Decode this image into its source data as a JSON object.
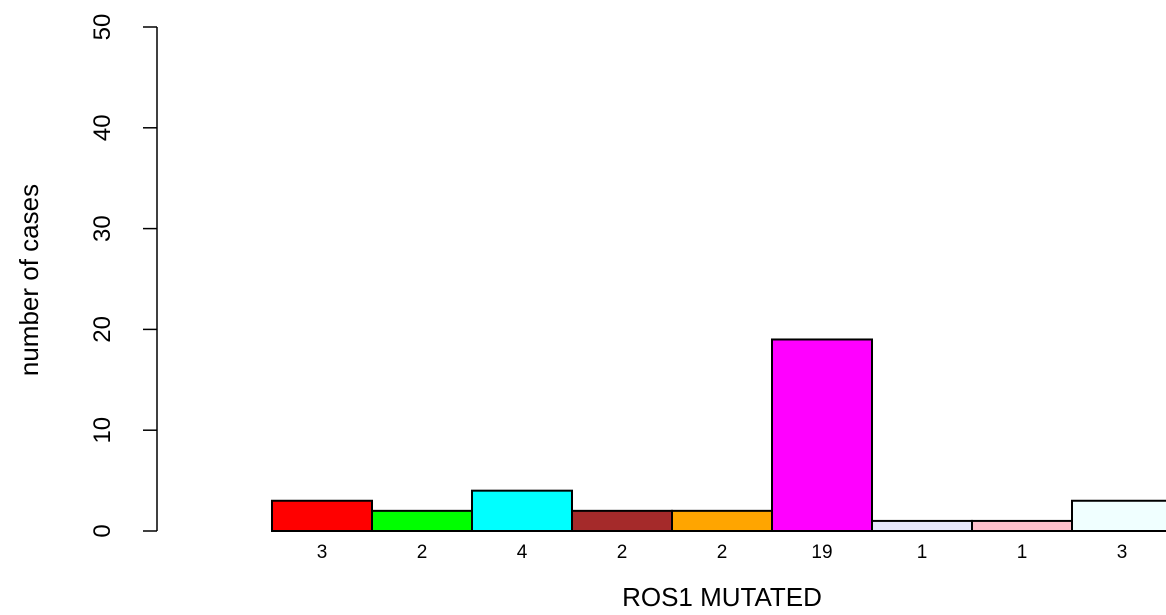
{
  "chart_data": {
    "type": "bar",
    "title": "",
    "xlabel": "ROS1 MUTATED",
    "ylabel": "number of cases",
    "ylim": [
      0,
      50
    ],
    "yticks": [
      0,
      10,
      20,
      30,
      40,
      50
    ],
    "grid": false,
    "categories": [
      "3",
      "2",
      "4",
      "2",
      "2",
      "19",
      "1",
      "1",
      "3"
    ],
    "values": [
      3,
      2,
      4,
      2,
      2,
      19,
      1,
      1,
      3
    ],
    "colors": [
      "#ff0000",
      "#00ff00",
      "#00ffff",
      "#a52a2a",
      "#ffa500",
      "#ff00ff",
      "#e6e6fa",
      "#ffc0cb",
      "#f0ffff"
    ]
  }
}
